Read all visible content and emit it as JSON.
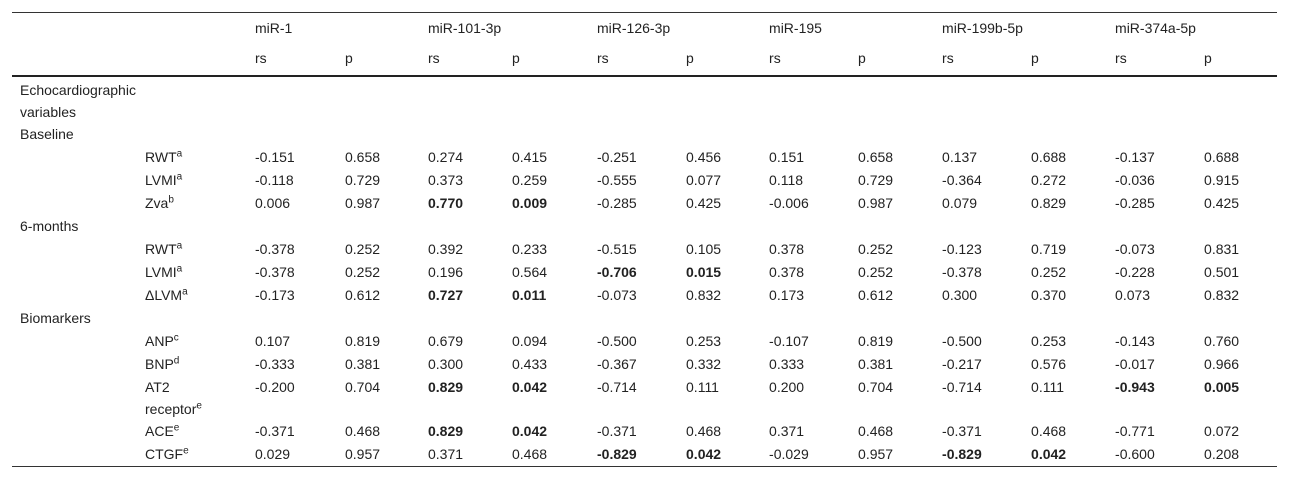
{
  "table": {
    "groups": [
      "miR-1",
      "miR-101-3p",
      "miR-126-3p",
      "miR-195",
      "miR-199b-5p",
      "miR-374a-5p"
    ],
    "subheaders": [
      "rs",
      "p",
      "rs",
      "p",
      "rs",
      "p",
      "rs",
      "p",
      "rs",
      "p",
      "rs",
      "p"
    ],
    "sections": [
      {
        "title": "Echocardiographic variables",
        "rows": []
      },
      {
        "title": "Baseline",
        "rows": [
          {
            "label": "RWT",
            "sup": "a",
            "values": [
              "-0.151",
              "0.658",
              "0.274",
              "0.415",
              "-0.251",
              "0.456",
              "0.151",
              "0.658",
              "0.137",
              "0.688",
              "-0.137",
              "0.688"
            ],
            "bold": []
          },
          {
            "label": "LVMI",
            "sup": "a",
            "values": [
              "-0.118",
              "0.729",
              "0.373",
              "0.259",
              "-0.555",
              "0.077",
              "0.118",
              "0.729",
              "-0.364",
              "0.272",
              "-0.036",
              "0.915"
            ],
            "bold": []
          },
          {
            "label": "Zva",
            "sup": "b",
            "values": [
              "0.006",
              "0.987",
              "0.770",
              "0.009",
              "-0.285",
              "0.425",
              "-0.006",
              "0.987",
              "0.079",
              "0.829",
              "-0.285",
              "0.425"
            ],
            "bold": [
              2,
              3
            ]
          }
        ]
      },
      {
        "title": "6-months",
        "rows": [
          {
            "label": "RWT",
            "sup": "a",
            "values": [
              "-0.378",
              "0.252",
              "0.392",
              "0.233",
              "-0.515",
              "0.105",
              "0.378",
              "0.252",
              "-0.123",
              "0.719",
              "-0.073",
              "0.831"
            ],
            "bold": []
          },
          {
            "label": "LVMI",
            "sup": "a",
            "values": [
              "-0.378",
              "0.252",
              "0.196",
              "0.564",
              "-0.706",
              "0.015",
              "0.378",
              "0.252",
              "-0.378",
              "0.252",
              "-0.228",
              "0.501"
            ],
            "bold": [
              4,
              5
            ]
          },
          {
            "label": "ΔLVM",
            "sup": "a",
            "values": [
              "-0.173",
              "0.612",
              "0.727",
              "0.011",
              "-0.073",
              "0.832",
              "0.173",
              "0.612",
              "0.300",
              "0.370",
              "0.073",
              "0.832"
            ],
            "bold": [
              2,
              3
            ]
          }
        ]
      },
      {
        "title": "Biomarkers",
        "rows": [
          {
            "label": "ANP",
            "sup": "c",
            "values": [
              "0.107",
              "0.819",
              "0.679",
              "0.094",
              "-0.500",
              "0.253",
              "-0.107",
              "0.819",
              "-0.500",
              "0.253",
              "-0.143",
              "0.760"
            ],
            "bold": []
          },
          {
            "label": "BNP",
            "sup": "d",
            "values": [
              "-0.333",
              "0.381",
              "0.300",
              "0.433",
              "-0.367",
              "0.332",
              "0.333",
              "0.381",
              "-0.217",
              "0.576",
              "-0.017",
              "0.966"
            ],
            "bold": []
          },
          {
            "label": "AT2 receptor",
            "sup": "e",
            "values": [
              "-0.200",
              "0.704",
              "0.829",
              "0.042",
              "-0.714",
              "0.111",
              "0.200",
              "0.704",
              "-0.714",
              "0.111",
              "-0.943",
              "0.005"
            ],
            "bold": [
              2,
              3,
              10,
              11
            ]
          },
          {
            "label": "ACE",
            "sup": "e",
            "values": [
              "-0.371",
              "0.468",
              "0.829",
              "0.042",
              "-0.371",
              "0.468",
              "0.371",
              "0.468",
              "-0.371",
              "0.468",
              "-0.771",
              "0.072"
            ],
            "bold": [
              2,
              3
            ]
          },
          {
            "label": "CTGF",
            "sup": "e",
            "values": [
              "0.029",
              "0.957",
              "0.371",
              "0.468",
              "-0.829",
              "0.042",
              "-0.029",
              "0.957",
              "-0.829",
              "0.042",
              "-0.600",
              "0.208"
            ],
            "bold": [
              4,
              5,
              8,
              9
            ]
          }
        ]
      }
    ]
  }
}
